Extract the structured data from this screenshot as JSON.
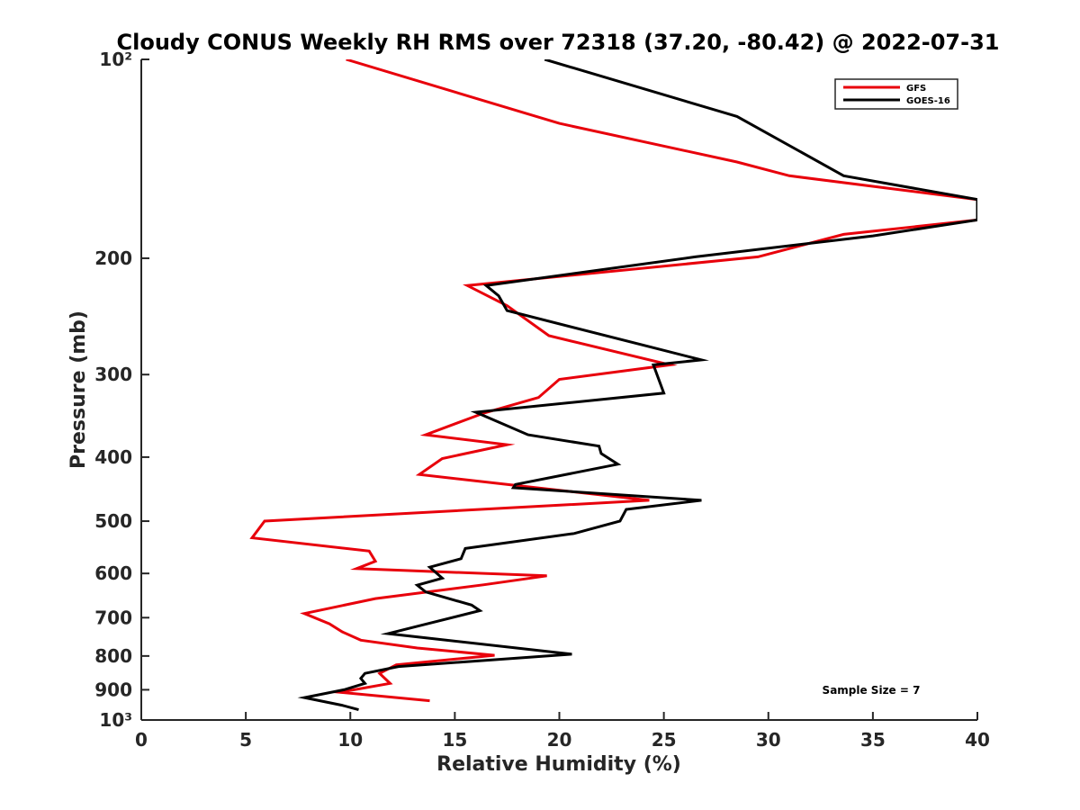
{
  "chart_data": {
    "type": "line",
    "title": "Cloudy CONUS Weekly RH RMS over 72318 (37.20, -80.42) @ 2022-07-31",
    "xlabel": "Relative Humidity (%)",
    "ylabel": "Pressure (mb)",
    "xlim": [
      0,
      40
    ],
    "ylim": [
      100,
      1000
    ],
    "y_scale": "log",
    "y_reversed": true,
    "x_ticks": [
      0,
      5,
      10,
      15,
      20,
      25,
      30,
      35,
      40
    ],
    "x_tick_labels": [
      "0",
      "5",
      "10",
      "15",
      "20",
      "25",
      "30",
      "35",
      "40"
    ],
    "y_ticks": [
      100,
      200,
      300,
      400,
      500,
      600,
      700,
      800,
      900,
      1000
    ],
    "y_tick_labels": [
      "10²",
      "200",
      "300",
      "400",
      "500",
      "600",
      "700",
      "800",
      "900",
      "10³"
    ],
    "grid": false,
    "legend_position": "top-right",
    "annotation": "Sample Size = 7",
    "series": [
      {
        "name": "GFS",
        "color": "#e8000b",
        "points": [
          [
            9.8,
            100
          ],
          [
            20.0,
            125
          ],
          [
            28.5,
            143
          ],
          [
            31.0,
            150
          ],
          [
            40.0,
            163
          ],
          [
            40.0,
            175
          ],
          [
            33.6,
            184
          ],
          [
            29.5,
            199
          ],
          [
            15.6,
            220
          ],
          [
            17.5,
            236
          ],
          [
            19.5,
            262
          ],
          [
            25.3,
            290
          ],
          [
            20.0,
            305
          ],
          [
            19.0,
            325
          ],
          [
            16.4,
            343
          ],
          [
            13.6,
            370
          ],
          [
            17.5,
            383
          ],
          [
            14.4,
            402
          ],
          [
            13.3,
            425
          ],
          [
            17.5,
            440
          ],
          [
            24.3,
            465
          ],
          [
            5.9,
            500
          ],
          [
            5.3,
            530
          ],
          [
            10.9,
            555
          ],
          [
            11.2,
            575
          ],
          [
            10.3,
            590
          ],
          [
            19.4,
            605
          ],
          [
            16.4,
            624
          ],
          [
            11.2,
            655
          ],
          [
            7.8,
            690
          ],
          [
            9.0,
            715
          ],
          [
            9.6,
            735
          ],
          [
            10.5,
            757
          ],
          [
            13.2,
            778
          ],
          [
            16.9,
            798
          ],
          [
            12.2,
            825
          ],
          [
            11.4,
            850
          ],
          [
            11.9,
            880
          ],
          [
            9.5,
            908
          ],
          [
            13.8,
            935
          ]
        ]
      },
      {
        "name": "GOES-16",
        "color": "#000000",
        "points": [
          [
            19.3,
            100
          ],
          [
            28.5,
            122
          ],
          [
            33.6,
            150
          ],
          [
            40.0,
            163
          ],
          [
            40.0,
            175
          ],
          [
            35.0,
            185
          ],
          [
            26.5,
            199
          ],
          [
            16.5,
            220
          ],
          [
            17.1,
            228
          ],
          [
            17.5,
            240
          ],
          [
            26.8,
            285
          ],
          [
            24.5,
            290
          ],
          [
            25.0,
            320
          ],
          [
            16.0,
            342
          ],
          [
            18.5,
            370
          ],
          [
            21.9,
            385
          ],
          [
            22.0,
            395
          ],
          [
            22.8,
            410
          ],
          [
            17.9,
            440
          ],
          [
            17.8,
            445
          ],
          [
            26.8,
            465
          ],
          [
            23.2,
            480
          ],
          [
            22.9,
            500
          ],
          [
            20.7,
            522
          ],
          [
            15.5,
            550
          ],
          [
            15.3,
            570
          ],
          [
            13.8,
            587
          ],
          [
            14.4,
            610
          ],
          [
            13.2,
            625
          ],
          [
            13.6,
            640
          ],
          [
            15.8,
            670
          ],
          [
            16.2,
            683
          ],
          [
            13.3,
            720
          ],
          [
            11.8,
            740
          ],
          [
            20.6,
            795
          ],
          [
            12.3,
            830
          ],
          [
            10.7,
            850
          ],
          [
            10.5,
            865
          ],
          [
            10.7,
            880
          ],
          [
            9.7,
            900
          ],
          [
            7.8,
            925
          ],
          [
            9.6,
            950
          ],
          [
            10.4,
            965
          ]
        ]
      }
    ]
  }
}
